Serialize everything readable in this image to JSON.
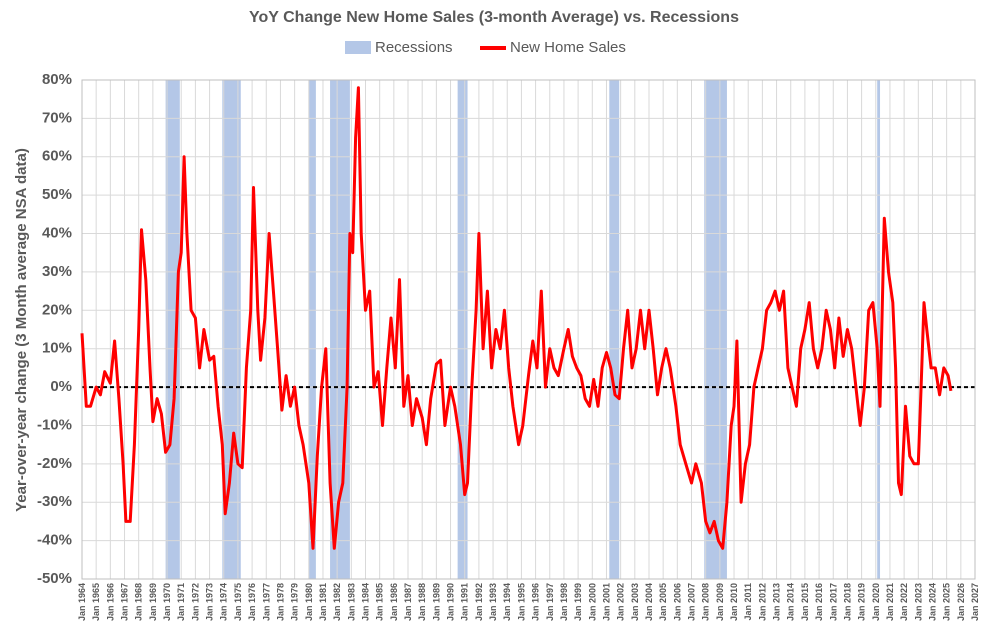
{
  "chart_data": {
    "type": "line",
    "title": "YoY Change New Home Sales (3-month Average) vs. Recessions",
    "y_label": "Year-over-year change (3 Month average NSA data)",
    "ylim": [
      -50,
      80
    ],
    "yticks": [
      {
        "value": -50,
        "label": "-50%"
      },
      {
        "value": -40,
        "label": "-40%"
      },
      {
        "value": -30,
        "label": "-30%"
      },
      {
        "value": -20,
        "label": "-20%"
      },
      {
        "value": -10,
        "label": "-10%"
      },
      {
        "value": 0,
        "label": "0%"
      },
      {
        "value": 10,
        "label": "10%"
      },
      {
        "value": 20,
        "label": "20%"
      },
      {
        "value": 30,
        "label": "30%"
      },
      {
        "value": 40,
        "label": "40%"
      },
      {
        "value": 50,
        "label": "50%"
      },
      {
        "value": 60,
        "label": "60%"
      },
      {
        "value": 70,
        "label": "70%"
      },
      {
        "value": 80,
        "label": "80%"
      }
    ],
    "xlim": [
      1964,
      2027
    ],
    "xticks": [
      {
        "value": 1964,
        "label": "Jan 1964"
      },
      {
        "value": 1965,
        "label": "Jan 1965"
      },
      {
        "value": 1966,
        "label": "Jan 1966"
      },
      {
        "value": 1967,
        "label": "Jan 1967"
      },
      {
        "value": 1968,
        "label": "Jan 1968"
      },
      {
        "value": 1969,
        "label": "Jan 1969"
      },
      {
        "value": 1970,
        "label": "Jan 1970"
      },
      {
        "value": 1971,
        "label": "Jan 1971"
      },
      {
        "value": 1972,
        "label": "Jan 1972"
      },
      {
        "value": 1973,
        "label": "Jan 1973"
      },
      {
        "value": 1974,
        "label": "Jan 1974"
      },
      {
        "value": 1975,
        "label": "Jan 1975"
      },
      {
        "value": 1976,
        "label": "Jan 1976"
      },
      {
        "value": 1977,
        "label": "Jan 1977"
      },
      {
        "value": 1978,
        "label": "Jan 1978"
      },
      {
        "value": 1979,
        "label": "Jan 1979"
      },
      {
        "value": 1980,
        "label": "Jan 1980"
      },
      {
        "value": 1981,
        "label": "Jan 1981"
      },
      {
        "value": 1982,
        "label": "Jan 1982"
      },
      {
        "value": 1983,
        "label": "Jan 1983"
      },
      {
        "value": 1984,
        "label": "Jan 1984"
      },
      {
        "value": 1985,
        "label": "Jan 1985"
      },
      {
        "value": 1986,
        "label": "Jan 1986"
      },
      {
        "value": 1987,
        "label": "Jan 1987"
      },
      {
        "value": 1988,
        "label": "Jan 1988"
      },
      {
        "value": 1989,
        "label": "Jan 1989"
      },
      {
        "value": 1990,
        "label": "Jan 1990"
      },
      {
        "value": 1991,
        "label": "Jan 1991"
      },
      {
        "value": 1992,
        "label": "Jan 1992"
      },
      {
        "value": 1993,
        "label": "Jan 1993"
      },
      {
        "value": 1994,
        "label": "Jan 1994"
      },
      {
        "value": 1995,
        "label": "Jan 1995"
      },
      {
        "value": 1996,
        "label": "Jan 1996"
      },
      {
        "value": 1997,
        "label": "Jan 1997"
      },
      {
        "value": 1998,
        "label": "Jan 1998"
      },
      {
        "value": 1999,
        "label": "Jan 1999"
      },
      {
        "value": 2000,
        "label": "Jan 2000"
      },
      {
        "value": 2001,
        "label": "Jan 2001"
      },
      {
        "value": 2002,
        "label": "Jan 2002"
      },
      {
        "value": 2003,
        "label": "Jan 2003"
      },
      {
        "value": 2004,
        "label": "Jan 2004"
      },
      {
        "value": 2005,
        "label": "Jan 2005"
      },
      {
        "value": 2006,
        "label": "Jan 2006"
      },
      {
        "value": 2007,
        "label": "Jan 2007"
      },
      {
        "value": 2008,
        "label": "Jan 2008"
      },
      {
        "value": 2009,
        "label": "Jan 2009"
      },
      {
        "value": 2010,
        "label": "Jan 2010"
      },
      {
        "value": 2011,
        "label": "Jan 2011"
      },
      {
        "value": 2012,
        "label": "Jan 2012"
      },
      {
        "value": 2013,
        "label": "Jan 2013"
      },
      {
        "value": 2014,
        "label": "Jan 2014"
      },
      {
        "value": 2015,
        "label": "Jan 2015"
      },
      {
        "value": 2016,
        "label": "Jan 2016"
      },
      {
        "value": 2017,
        "label": "Jan 2017"
      },
      {
        "value": 2018,
        "label": "Jan 2018"
      },
      {
        "value": 2019,
        "label": "Jan 2019"
      },
      {
        "value": 2020,
        "label": "Jan 2020"
      },
      {
        "value": 2021,
        "label": "Jan 2021"
      },
      {
        "value": 2022,
        "label": "Jan 2022"
      },
      {
        "value": 2023,
        "label": "Jan 2023"
      },
      {
        "value": 2024,
        "label": "Jan 2024"
      },
      {
        "value": 2025,
        "label": "Jan 2025"
      },
      {
        "value": 2026,
        "label": "Jan 2026"
      },
      {
        "value": 2027,
        "label": "Jan 2027"
      }
    ],
    "grid": true,
    "legend": "top",
    "recessions": {
      "name": "Recessions",
      "color": "#b4c7e7",
      "ranges": [
        [
          1969.9,
          1970.9
        ],
        [
          1973.9,
          1975.2
        ],
        [
          1980.0,
          1980.5
        ],
        [
          1981.5,
          1982.9
        ],
        [
          1990.5,
          1991.2
        ],
        [
          2001.2,
          2001.9
        ],
        [
          2007.9,
          2009.5
        ],
        [
          2020.1,
          2020.3
        ]
      ]
    },
    "series": [
      {
        "name": "New Home Sales",
        "color": "#ff0000",
        "x": [
          1964.0,
          1964.3,
          1964.6,
          1965.0,
          1965.3,
          1965.6,
          1966.0,
          1966.3,
          1966.6,
          1966.9,
          1967.1,
          1967.4,
          1967.7,
          1968.0,
          1968.2,
          1968.5,
          1968.8,
          1969.0,
          1969.3,
          1969.6,
          1969.9,
          1970.2,
          1970.5,
          1970.8,
          1971.0,
          1971.2,
          1971.4,
          1971.7,
          1972.0,
          1972.3,
          1972.6,
          1973.0,
          1973.3,
          1973.6,
          1973.9,
          1974.1,
          1974.4,
          1974.7,
          1975.0,
          1975.3,
          1975.6,
          1975.9,
          1976.1,
          1976.4,
          1976.6,
          1976.9,
          1977.2,
          1977.5,
          1977.8,
          1978.1,
          1978.4,
          1978.7,
          1979.0,
          1979.3,
          1979.6,
          1980.0,
          1980.3,
          1980.6,
          1980.9,
          1981.2,
          1981.5,
          1981.8,
          1982.1,
          1982.4,
          1982.7,
          1982.9,
          1983.1,
          1983.3,
          1983.5,
          1983.7,
          1984.0,
          1984.3,
          1984.6,
          1984.9,
          1985.2,
          1985.5,
          1985.8,
          1986.1,
          1986.4,
          1986.7,
          1987.0,
          1987.3,
          1987.6,
          1988.0,
          1988.3,
          1988.6,
          1989.0,
          1989.3,
          1989.6,
          1990.0,
          1990.3,
          1990.7,
          1991.0,
          1991.2,
          1991.5,
          1991.8,
          1992.0,
          1992.3,
          1992.6,
          1992.9,
          1993.2,
          1993.5,
          1993.8,
          1994.1,
          1994.4,
          1994.8,
          1995.1,
          1995.5,
          1995.8,
          1996.1,
          1996.4,
          1996.7,
          1997.0,
          1997.3,
          1997.6,
          1998.0,
          1998.3,
          1998.6,
          1998.9,
          1999.2,
          1999.5,
          1999.8,
          2000.1,
          2000.4,
          2000.7,
          2001.0,
          2001.3,
          2001.6,
          2001.9,
          2002.2,
          2002.5,
          2002.8,
          2003.1,
          2003.4,
          2003.7,
          2004.0,
          2004.3,
          2004.6,
          2004.9,
          2005.2,
          2005.5,
          2005.9,
          2006.2,
          2006.6,
          2007.0,
          2007.3,
          2007.7,
          2008.0,
          2008.3,
          2008.6,
          2008.9,
          2009.2,
          2009.5,
          2009.8,
          2010.0,
          2010.2,
          2010.5,
          2010.8,
          2011.1,
          2011.4,
          2011.7,
          2012.0,
          2012.3,
          2012.6,
          2012.9,
          2013.2,
          2013.5,
          2013.8,
          2014.1,
          2014.4,
          2014.7,
          2015.0,
          2015.3,
          2015.6,
          2015.9,
          2016.2,
          2016.5,
          2016.8,
          2017.1,
          2017.4,
          2017.7,
          2018.0,
          2018.3,
          2018.6,
          2018.9,
          2019.2,
          2019.5,
          2019.8,
          2020.1,
          2020.3,
          2020.6,
          2020.9,
          2021.2,
          2021.4,
          2021.6,
          2021.8,
          2022.1,
          2022.4,
          2022.7,
          2023.0,
          2023.2,
          2023.4,
          2023.6,
          2023.9,
          2024.2,
          2024.5,
          2024.8,
          2025.1,
          2025.3
        ],
        "values": [
          14,
          -5,
          -5,
          0,
          -2,
          4,
          1,
          12,
          -3,
          -20,
          -35,
          -35,
          -15,
          15,
          41,
          28,
          5,
          -9,
          -3,
          -7,
          -17,
          -15,
          -3,
          30,
          35,
          60,
          40,
          20,
          18,
          5,
          15,
          7,
          8,
          -5,
          -15,
          -33,
          -25,
          -12,
          -20,
          -21,
          5,
          20,
          52,
          20,
          7,
          18,
          40,
          25,
          10,
          -6,
          3,
          -5,
          0,
          -10,
          -15,
          -25,
          -42,
          -18,
          0,
          10,
          -25,
          -42,
          -30,
          -25,
          0,
          40,
          35,
          65,
          78,
          40,
          20,
          25,
          0,
          4,
          -10,
          5,
          18,
          5,
          28,
          -5,
          3,
          -10,
          -3,
          -8,
          -15,
          -3,
          6,
          7,
          -10,
          0,
          -5,
          -15,
          -28,
          -25,
          0,
          20,
          40,
          10,
          25,
          5,
          15,
          10,
          20,
          5,
          -5,
          -15,
          -10,
          3,
          12,
          5,
          25,
          0,
          10,
          5,
          3,
          10,
          15,
          8,
          5,
          3,
          -3,
          -5,
          2,
          -5,
          5,
          9,
          5,
          -2,
          -3,
          10,
          20,
          5,
          10,
          20,
          10,
          20,
          10,
          -2,
          5,
          10,
          5,
          -5,
          -15,
          -20,
          -25,
          -20,
          -25,
          -35,
          -38,
          -35,
          -40,
          -42,
          -30,
          -10,
          -5,
          12,
          -30,
          -20,
          -15,
          0,
          5,
          10,
          20,
          22,
          25,
          20,
          25,
          5,
          0,
          -5,
          10,
          15,
          22,
          10,
          5,
          10,
          20,
          15,
          5,
          18,
          8,
          15,
          10,
          0,
          -10,
          0,
          20,
          22,
          10,
          -5,
          44,
          30,
          22,
          5,
          -25,
          -28,
          -5,
          -18,
          -20,
          -20,
          0,
          22,
          15,
          5,
          5,
          -2,
          5,
          3,
          -1
        ]
      }
    ]
  }
}
